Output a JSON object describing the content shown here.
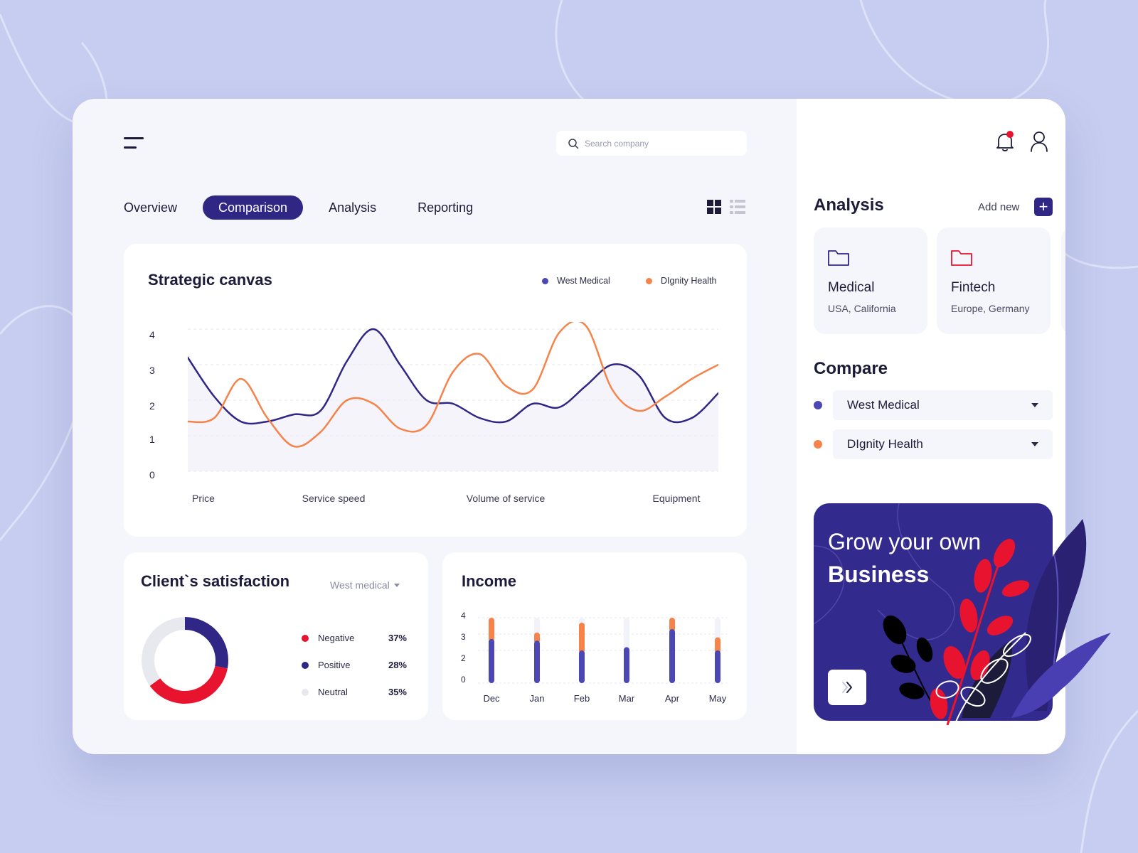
{
  "search": {
    "placeholder": "Search company"
  },
  "tabs": [
    {
      "label": "Overview"
    },
    {
      "label": "Comparison",
      "active": true
    },
    {
      "label": "Analysis"
    },
    {
      "label": "Reporting"
    }
  ],
  "view_toggle": {
    "selected": "grid"
  },
  "strategic_canvas": {
    "title": "Strategic canvas",
    "legend": [
      {
        "name": "West Medical",
        "color": "#4b47b3"
      },
      {
        "name": "DIgnity Health",
        "color": "#f5834a"
      }
    ]
  },
  "client_satisfaction": {
    "title": "Client`s satisfaction",
    "filter": "West medical",
    "items": [
      {
        "label": "Negative",
        "value": "37%",
        "color": "#e8142f"
      },
      {
        "label": "Positive",
        "value": "28%",
        "color": "#2f2686"
      },
      {
        "label": "Neutral",
        "value": "35%",
        "color": "#e8e9ef"
      }
    ]
  },
  "income": {
    "title": "Income"
  },
  "chart_data": [
    {
      "type": "line",
      "title": "Strategic canvas",
      "categories": [
        "Price",
        "Service speed",
        "Volume of service",
        "Equipment"
      ],
      "yticks": [
        "0",
        "1",
        "2",
        "3",
        "4"
      ],
      "ylim": [
        0,
        4
      ],
      "grid": true,
      "legend_position": "top-right",
      "x": [
        0,
        0.5,
        1,
        1.5,
        2,
        2.5,
        3,
        3.5,
        4,
        4.5,
        5,
        5.5,
        6,
        6.5,
        7,
        7.5,
        8,
        8.5,
        9,
        9.5,
        10
      ],
      "series": [
        {
          "name": "West Medical",
          "color": "#2f2686",
          "values": [
            3.2,
            2.1,
            1.4,
            1.4,
            1.6,
            1.7,
            3.1,
            4.0,
            3.0,
            2.0,
            1.9,
            1.5,
            1.4,
            1.9,
            1.8,
            2.4,
            3.0,
            2.7,
            1.5,
            1.5,
            2.2
          ]
        },
        {
          "name": "DIgnity Health",
          "color": "#f5834a",
          "values": [
            1.4,
            1.5,
            2.6,
            1.5,
            0.7,
            1.1,
            2.0,
            1.9,
            1.2,
            1.3,
            2.8,
            3.3,
            2.4,
            2.3,
            3.9,
            4.1,
            2.3,
            1.7,
            2.1,
            2.6,
            3.0
          ]
        }
      ]
    },
    {
      "type": "bar",
      "title": "Income",
      "categories": [
        "Dec",
        "Jan",
        "Feb",
        "Mar",
        "Apr",
        "May"
      ],
      "yticks": [
        "0",
        "1",
        "2",
        "3",
        "4"
      ],
      "ylim": [
        0,
        4
      ],
      "stacked": true,
      "series": [
        {
          "color": "#4b47b3",
          "values": [
            2.7,
            2.6,
            2.0,
            2.2,
            3.3,
            2.0
          ]
        },
        {
          "color": "#f5834a",
          "values": [
            1.3,
            0.5,
            1.7,
            0,
            0.7,
            0.8
          ]
        }
      ]
    },
    {
      "type": "pie",
      "title": "Client`s satisfaction",
      "categories": [
        "Negative",
        "Positive",
        "Neutral"
      ],
      "values": [
        37,
        28,
        35
      ],
      "colors": [
        "#e8142f",
        "#2f2686",
        "#e8e9ef"
      ]
    }
  ],
  "right_panel": {
    "analysis_title": "Analysis",
    "add_new": "Add new",
    "add_icon": "+",
    "cards": [
      {
        "name": "Medical",
        "location": "USA, California",
        "color": "#2f2686",
        "icon": "folder-icon"
      },
      {
        "name": "Fintech",
        "location": "Europe, Germany",
        "color": "#e8142f",
        "icon": "folder-icon"
      }
    ],
    "compare_title": "Compare",
    "compare": [
      {
        "name": "West Medical",
        "color": "#4b47b3"
      },
      {
        "name": "DIgnity Health",
        "color": "#f5834a"
      }
    ],
    "promo": {
      "line1": "Grow your own",
      "line2": "Business"
    }
  },
  "colors": {
    "primary": "#302683",
    "accent": "#f5834a",
    "danger": "#e8142f",
    "background": "#c6cdf0"
  }
}
